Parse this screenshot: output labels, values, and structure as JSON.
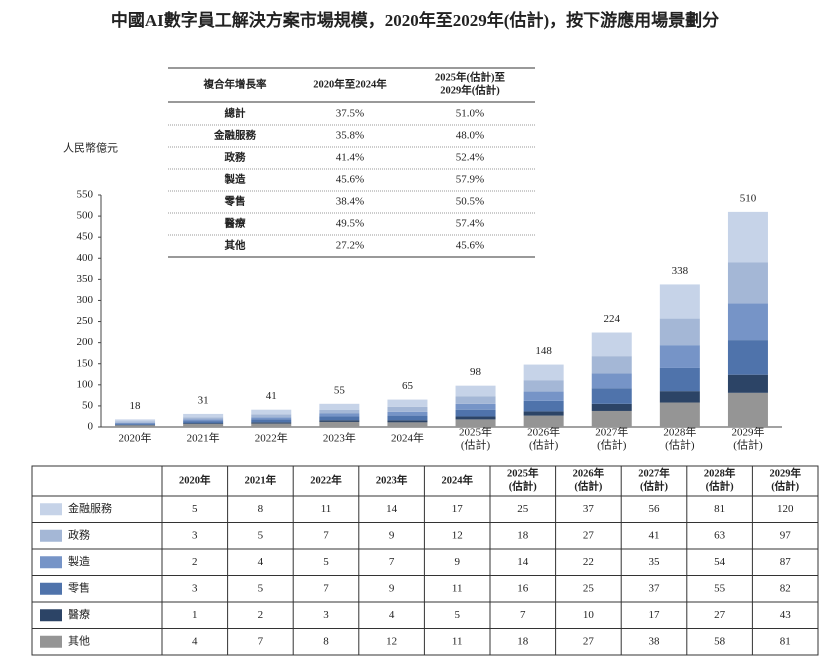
{
  "chart_data": {
    "type": "stacked-bar",
    "title": "中國AI數字員工解決方案市場規模，2020年至2029年(估計)，按下游應用場景劃分",
    "y_label": "人民幣億元",
    "categories": [
      "2020年",
      "2021年",
      "2022年",
      "2023年",
      "2024年",
      "2025年\n(估計)",
      "2026年\n(估計)",
      "2027年\n(估計)",
      "2028年\n(估計)",
      "2029年\n(估計)"
    ],
    "series": [
      {
        "name": "金融服務",
        "color": "#c6d3e8",
        "values": [
          5,
          8,
          11,
          14,
          17,
          25,
          37,
          56,
          81,
          120
        ]
      },
      {
        "name": "政務",
        "color": "#a4b7d6",
        "values": [
          3,
          5,
          7,
          9,
          12,
          18,
          27,
          41,
          63,
          97
        ]
      },
      {
        "name": "製造",
        "color": "#7694c7",
        "values": [
          2,
          4,
          5,
          7,
          9,
          14,
          22,
          35,
          54,
          87
        ]
      },
      {
        "name": "零售",
        "color": "#4f73ab",
        "values": [
          3,
          5,
          7,
          9,
          11,
          16,
          25,
          37,
          55,
          82
        ]
      },
      {
        "name": "醫療",
        "color": "#2c4466",
        "values": [
          1,
          2,
          3,
          4,
          5,
          7,
          10,
          17,
          27,
          43
        ]
      },
      {
        "name": "其他",
        "color": "#959595",
        "values": [
          4,
          7,
          8,
          12,
          11,
          18,
          27,
          38,
          58,
          81
        ]
      }
    ],
    "totals": [
      18,
      31,
      41,
      55,
      65,
      98,
      148,
      224,
      338,
      510
    ],
    "ylim": [
      0,
      550
    ],
    "yticks": [
      0,
      50,
      100,
      150,
      200,
      250,
      300,
      350,
      400,
      450,
      500,
      550
    ],
    "grid": false
  },
  "cagr_table": {
    "header": [
      "複合年增長率",
      "2020年至2024年",
      "2025年(估計)至\n2029年(估計)"
    ],
    "rows": [
      [
        "總計",
        "37.5%",
        "51.0%"
      ],
      [
        "金融服務",
        "35.8%",
        "48.0%"
      ],
      [
        "政務",
        "41.4%",
        "52.4%"
      ],
      [
        "製造",
        "45.6%",
        "57.9%"
      ],
      [
        "零售",
        "38.4%",
        "50.5%"
      ],
      [
        "醫療",
        "49.5%",
        "57.4%"
      ],
      [
        "其他",
        "27.2%",
        "45.6%"
      ]
    ]
  }
}
